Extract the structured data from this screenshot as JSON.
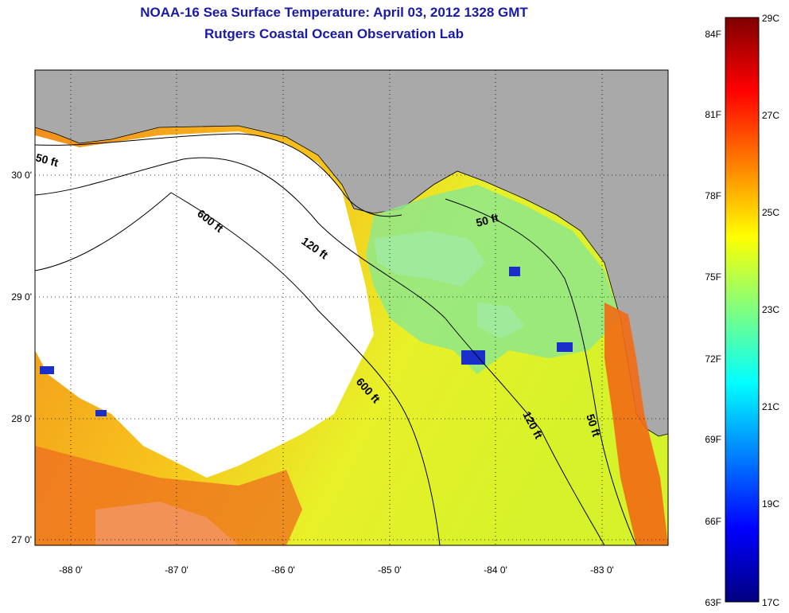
{
  "title": {
    "line1": "NOAA-16 Sea Surface Temperature:  April 03, 2012 1328 GMT",
    "line2": "Rutgers Coastal Ocean Observation Lab"
  },
  "map": {
    "lon_ticks": [
      "-88 0'",
      "-87 0'",
      "-86 0'",
      "-85 0'",
      "-84 0'",
      "-83 0'"
    ],
    "lat_ticks": [
      "30 0'",
      "29 0'",
      "28 0'",
      "27 0'"
    ],
    "contours": [
      "50 ft",
      "600 ft",
      "120 ft",
      "50 ft",
      "600 ft",
      "120 ft",
      "50 ft"
    ],
    "colors": {
      "land": "#a9a9a9",
      "cloud": "#ffffff",
      "background": "#ffffff"
    }
  },
  "colorbar": {
    "fahrenheit": [
      "84F",
      "81F",
      "78F",
      "75F",
      "72F",
      "69F",
      "66F",
      "63F"
    ],
    "celsius": [
      "29C",
      "27C",
      "25C",
      "23C",
      "21C",
      "19C",
      "17C"
    ],
    "range_c": [
      17,
      29
    ],
    "colormap": [
      "#00007f",
      "#0000ff",
      "#007fff",
      "#00ffff",
      "#7fff7f",
      "#ffff00",
      "#ff7f00",
      "#ff0000",
      "#7f0000"
    ]
  }
}
